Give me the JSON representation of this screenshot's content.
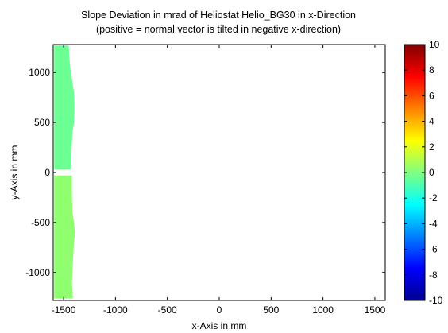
{
  "chart_data": {
    "type": "heatmap",
    "title": "Slope Deviation in mrad of Heliostat Helio_BG30 in x-Direction",
    "subtitle": "(positive = normal vector is tilted in negative x-direction)",
    "xlabel": "x-Axis in mm",
    "ylabel": "y-Axis in mm",
    "xlim": [
      -1600,
      1600
    ],
    "ylim": [
      -1280,
      1280
    ],
    "xticks": [
      -1500,
      -1000,
      -500,
      0,
      500,
      1000,
      1500
    ],
    "yticks": [
      -1000,
      -500,
      0,
      500,
      1000
    ],
    "colorbar": {
      "colormap": "jet",
      "clim": [
        -10,
        10
      ],
      "ticks": [
        10,
        8,
        6,
        4,
        2,
        0,
        -2,
        -4,
        -6,
        -8,
        -10
      ]
    },
    "facets": [
      {
        "name": "upper",
        "y_range": [
          30,
          1270
        ],
        "x_left_edge": -1590,
        "x_right_profile": [
          [
            1270,
            -1450
          ],
          [
            1150,
            -1445
          ],
          [
            1000,
            -1430
          ],
          [
            900,
            -1415
          ],
          [
            800,
            -1400
          ],
          [
            700,
            -1395
          ],
          [
            600,
            -1395
          ],
          [
            500,
            -1400
          ],
          [
            400,
            -1415
          ],
          [
            300,
            -1420
          ],
          [
            150,
            -1430
          ],
          [
            30,
            -1430
          ]
        ],
        "slope_deviation_mrad": -0.4
      },
      {
        "name": "lower",
        "y_range": [
          -1260,
          -30
        ],
        "x_left_edge": -1590,
        "x_right_profile": [
          [
            -30,
            -1420
          ],
          [
            -200,
            -1420
          ],
          [
            -400,
            -1415
          ],
          [
            -500,
            -1400
          ],
          [
            -600,
            -1390
          ],
          [
            -700,
            -1400
          ],
          [
            -900,
            -1410
          ],
          [
            -1100,
            -1420
          ],
          [
            -1260,
            -1410
          ]
        ],
        "slope_deviation_mrad": 0.3
      }
    ]
  }
}
